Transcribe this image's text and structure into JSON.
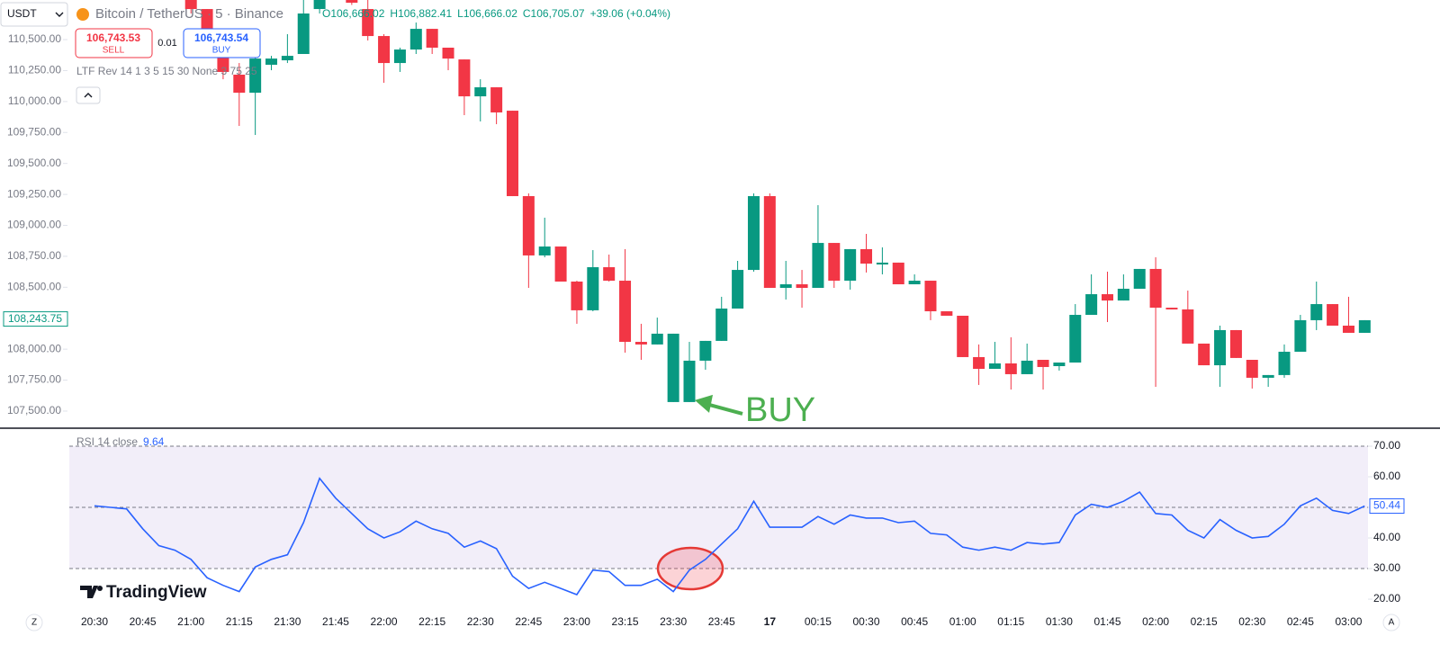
{
  "toolbar": {
    "symbol_select": "USDT",
    "sell_price": "106,743.53",
    "sell_label": "SELL",
    "quantity": "0.01",
    "buy_price": "106,743.54",
    "buy_label": "BUY",
    "indicator": "LTF Rev 14 1 3 5 15 30 None 3 75 25",
    "logo": "TradingView",
    "left_corner": "Z",
    "right_corner": "A"
  },
  "chart_data": [
    {
      "type": "candlestick",
      "title": "Bitcoin / TetherUS · 5 · Binance",
      "legend_values": [
        "O106,666.02",
        "H106,882.41",
        "L106,666.02",
        "C106,705.07",
        "+39.06 (+0.04%)"
      ],
      "categories": [
        "20:30",
        null,
        null,
        "20:45",
        null,
        null,
        "21:00",
        null,
        null,
        "21:15",
        null,
        null,
        "21:30",
        null,
        null,
        "21:45",
        null,
        null,
        "22:00",
        null,
        null,
        "22:15",
        null,
        null,
        "22:30",
        null,
        null,
        "22:45",
        null,
        null,
        "23:00",
        null,
        null,
        "23:15",
        null,
        null,
        "23:30",
        null,
        null,
        "23:45",
        null,
        null,
        "17",
        null,
        null,
        "00:15",
        null,
        null,
        "00:30",
        null,
        null,
        "00:45",
        null,
        null,
        "01:00",
        null,
        null,
        "01:15",
        null,
        null,
        "01:30",
        null,
        null,
        "01:45",
        null,
        null,
        "02:00",
        null,
        null,
        "02:15",
        null,
        null,
        "02:30",
        null,
        null,
        "02:45",
        null,
        null,
        "03:00",
        null
      ],
      "open": [
        null,
        null,
        null,
        null,
        null,
        null,
        110820,
        110747,
        110493,
        110217,
        110071,
        110297,
        110333,
        110384,
        110747,
        null,
        110820,
        110747,
        110529,
        110311,
        110420,
        110587,
        110435,
        110340,
        110042,
        110115,
        109926,
        109236,
        108757,
        108829,
        108546,
        108314,
        108662,
        108553,
        108059,
        108038,
        107573,
        107573,
        107907,
        108067,
        108328,
        108640,
        109236,
        108495,
        108524,
        108495,
        108858,
        108553,
        108808,
        108684,
        108699,
        108524,
        108553,
        108306,
        108270,
        107936,
        107841,
        107885,
        107798,
        107914,
        107863,
        107892,
        108277,
        108444,
        108393,
        108488,
        108648,
        108335,
        108321,
        108045,
        107870,
        108154,
        107914,
        107769,
        107791,
        107979,
        108234,
        108364,
        108190,
        108132
      ],
      "high": [
        null,
        null,
        null,
        null,
        null,
        null,
        110820,
        110747,
        110529,
        110311,
        110384,
        110369,
        110544,
        110820,
        110820,
        null,
        110820,
        110820,
        110544,
        110435,
        110638,
        110587,
        110435,
        110340,
        110180,
        110115,
        109926,
        109258,
        109062,
        108829,
        108553,
        108800,
        108764,
        108808,
        108205,
        108255,
        108125,
        108059,
        108067,
        108423,
        108713,
        109258,
        109258,
        108713,
        108640,
        109163,
        108858,
        108808,
        108931,
        108822,
        108699,
        108604,
        108553,
        108306,
        108270,
        108038,
        108059,
        108096,
        108045,
        107914,
        107892,
        108364,
        108604,
        108626,
        108604,
        108648,
        108742,
        108335,
        108473,
        108045,
        108190,
        108154,
        107914,
        107791,
        108038,
        108277,
        108546,
        108364,
        108423,
        108234
      ],
      "low": [
        null,
        null,
        null,
        null,
        null,
        null,
        110711,
        110435,
        110180,
        109803,
        109730,
        110253,
        110311,
        110384,
        110711,
        null,
        110780,
        110493,
        110151,
        110239,
        110384,
        110384,
        110253,
        109890,
        109839,
        109817,
        109236,
        108495,
        108742,
        108546,
        108205,
        108306,
        108546,
        107972,
        107914,
        108038,
        107573,
        107573,
        107834,
        108067,
        108328,
        108626,
        108495,
        108401,
        108335,
        108495,
        108495,
        108481,
        108619,
        108604,
        108524,
        108524,
        108234,
        108270,
        107936,
        107711,
        107841,
        107674,
        107798,
        107674,
        107827,
        107892,
        108277,
        108219,
        108393,
        108488,
        107696,
        108321,
        108045,
        107870,
        107696,
        107929,
        107682,
        107696,
        107769,
        107979,
        108154,
        108190,
        108132,
        108132
      ],
      "close": [
        null,
        null,
        null,
        null,
        null,
        null,
        110747,
        110493,
        110239,
        110071,
        110347,
        110347,
        110369,
        110711,
        110820,
        null,
        110798,
        110529,
        110311,
        110420,
        110587,
        110435,
        110347,
        110042,
        110115,
        109912,
        109236,
        108757,
        108829,
        108546,
        108314,
        108662,
        108553,
        108059,
        108038,
        108125,
        108125,
        107907,
        108067,
        108328,
        108640,
        109236,
        108495,
        108524,
        108495,
        108858,
        108553,
        108808,
        108691,
        108699,
        108524,
        108553,
        108306,
        108270,
        107936,
        107841,
        107885,
        107798,
        107907,
        107856,
        107892,
        108277,
        108444,
        108393,
        108488,
        108648,
        108335,
        108321,
        108045,
        107870,
        108154,
        107929,
        107769,
        107791,
        107979,
        108234,
        108364,
        108190,
        108132,
        108234
      ],
      "up_color": "#089981",
      "down_color": "#f23645",
      "ylim": [
        107369,
        110820
      ],
      "yticks": [
        {
          "value": 110500,
          "label": "110,500.00"
        },
        {
          "value": 110250,
          "label": "110,250.00"
        },
        {
          "value": 110000,
          "label": "110,000.00"
        },
        {
          "value": 109750,
          "label": "109,750.00"
        },
        {
          "value": 109500,
          "label": "109,500.00"
        },
        {
          "value": 109250,
          "label": "109,250.00"
        },
        {
          "value": 109000,
          "label": "109,000.00"
        },
        {
          "value": 108750,
          "label": "108,750.00"
        },
        {
          "value": 108500,
          "label": "108,500.00"
        },
        {
          "value": 108250,
          "label": "108,250.00"
        },
        {
          "value": 108000,
          "label": "108,000.00"
        },
        {
          "value": 107750,
          "label": "107,750.00"
        },
        {
          "value": 107500,
          "label": "107,500.00"
        }
      ],
      "price_label": {
        "value": 108243.75,
        "label": "108,243.75"
      },
      "annotation": "BUY"
    },
    {
      "type": "line",
      "value_text": "9.64",
      "series": [
        {
          "name": "RSI 14 close",
          "color": "#2962ff",
          "values": [
            50.5,
            50,
            49.5,
            43,
            37.5,
            36,
            33,
            27,
            24.5,
            22.5,
            30.5,
            33,
            34.5,
            45,
            59.5,
            53,
            48,
            43,
            40,
            42,
            45.5,
            43,
            41.5,
            37,
            39,
            36.5,
            27.5,
            23.5,
            25.5,
            23.5,
            21.5,
            29.5,
            29,
            24.5,
            24.5,
            26.5,
            22.5,
            29.5,
            33,
            38,
            43,
            52,
            43.5,
            43.5,
            43.5,
            47,
            44.5,
            47.5,
            46.5,
            46.5,
            45,
            45.5,
            41.5,
            41,
            37,
            36,
            37,
            36,
            38.5,
            38,
            38.5,
            47.5,
            51,
            50,
            52,
            55,
            48,
            47.5,
            42.5,
            40,
            46,
            42.5,
            40,
            40.5,
            44.5,
            50.5,
            53,
            49,
            48,
            50.44
          ]
        }
      ],
      "ylim": [
        15.9,
        74.7
      ],
      "yticks": [
        {
          "value": 70,
          "label": "70.00"
        },
        {
          "value": 60,
          "label": "60.00"
        },
        {
          "value": 50,
          "label": "50.00"
        },
        {
          "value": 40,
          "label": "40.00"
        },
        {
          "value": 30,
          "label": "30.00"
        },
        {
          "value": 20,
          "label": "20.00"
        }
      ],
      "band": [
        30,
        70
      ],
      "levels": [
        30,
        50,
        70
      ],
      "band_color": "#7e57c2"
    }
  ]
}
